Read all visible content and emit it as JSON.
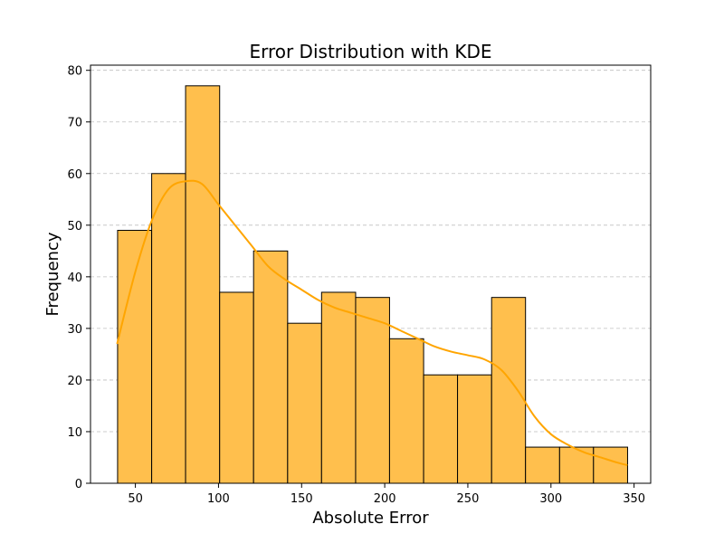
{
  "chart_data": {
    "type": "bar",
    "title": "Error Distribution with KDE",
    "xlabel": "Absolute Error",
    "ylabel": "Frequency",
    "xlim": [
      23,
      360
    ],
    "ylim": [
      0,
      81
    ],
    "x_ticks": [
      50,
      100,
      150,
      200,
      250,
      300,
      350
    ],
    "y_ticks": [
      0,
      10,
      20,
      30,
      40,
      50,
      60,
      70,
      80
    ],
    "grid": "y-dashed",
    "bin_edges": [
      39.3,
      59.8,
      80.2,
      100.7,
      121.1,
      141.6,
      162.0,
      182.5,
      202.9,
      223.4,
      243.8,
      264.3,
      284.7,
      305.2,
      325.6,
      346.1
    ],
    "values": [
      49,
      60,
      77,
      37,
      45,
      31,
      37,
      36,
      28,
      21,
      21,
      36,
      7,
      7,
      7
    ],
    "kde": {
      "x": [
        39,
        50,
        60,
        70,
        80,
        90,
        100,
        110,
        120,
        130,
        140,
        150,
        160,
        170,
        180,
        190,
        200,
        210,
        220,
        230,
        240,
        250,
        260,
        270,
        280,
        290,
        300,
        310,
        320,
        330,
        340,
        346
      ],
      "y": [
        27,
        41,
        51,
        57,
        58.5,
        58,
        54,
        50,
        46,
        42,
        39.5,
        37.5,
        35.5,
        34,
        33,
        32,
        31,
        29.5,
        28,
        26.5,
        25.5,
        24.8,
        24,
        22,
        18,
        13,
        9.5,
        7.5,
        6,
        5,
        4,
        3.5
      ]
    },
    "colors": {
      "bar_fill": "#ffbf4d",
      "bar_edge": "#000000",
      "kde_line": "#ffa500",
      "grid": "#bfbfbf"
    }
  }
}
